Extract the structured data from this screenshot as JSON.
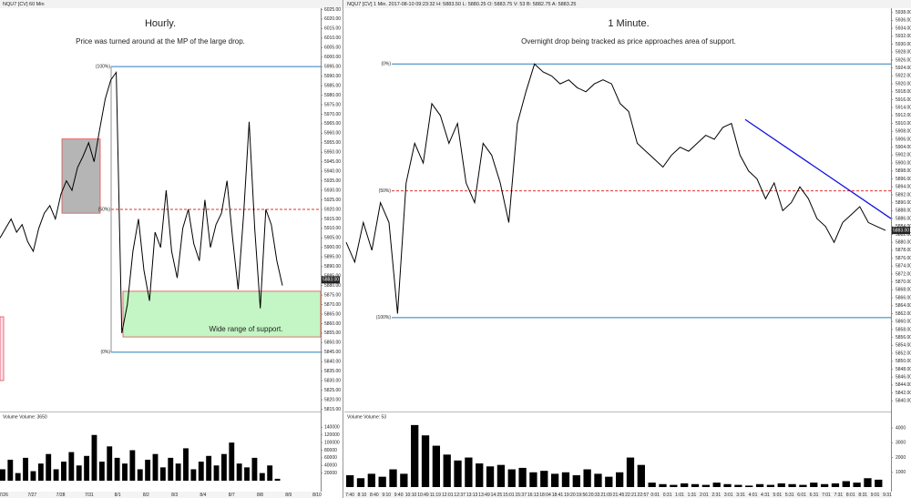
{
  "chart_data": [
    {
      "type": "line",
      "header": "NQU7 [CV] 60 Min",
      "title": "Hourly.",
      "subtitle": "Price was turned around at the MP of the large drop.",
      "annotation": "Wide range of support.",
      "series": [
        {
          "name": "NQU7",
          "color": "#000000",
          "values": [
            5905,
            5910,
            5915,
            5908,
            5912,
            5903,
            5898,
            5910,
            5918,
            5922,
            5915,
            5928,
            5935,
            5930,
            5942,
            5948,
            5955,
            5945,
            5962,
            5978,
            5988,
            5992,
            5855,
            5870,
            5898,
            5915,
            5888,
            5872,
            5908,
            5900,
            5930,
            5898,
            5884,
            5910,
            5920,
            5902,
            5893,
            5925,
            5900,
            5912,
            5918,
            5935,
            5905,
            5878,
            5918,
            5966,
            5910,
            5868,
            5920,
            5912,
            5893,
            5880
          ]
        }
      ],
      "last": {
        "value": 5883,
        "label": "5883.00"
      },
      "levels": [
        {
          "label": "(100%)",
          "value": 5995,
          "color": "#2a7fb8"
        },
        {
          "label": "(50%)",
          "value": 5920,
          "color": "#e03030"
        },
        {
          "label": "(0%)",
          "value": 5845,
          "color": "#2a7fb8"
        }
      ],
      "support_zone": [
        5853,
        5877
      ],
      "highlight_box": [
        5918,
        5957
      ],
      "ylim": [
        5810,
        6030
      ],
      "yticks": [
        {
          "value": 5815,
          "label": "5815.00"
        },
        {
          "value": 5820,
          "label": "5820.00"
        },
        {
          "value": 5825,
          "label": "5825.00"
        },
        {
          "value": 5830,
          "label": "5830.00"
        },
        {
          "value": 5835,
          "label": "5835.00"
        },
        {
          "value": 5840,
          "label": "5840.00"
        },
        {
          "value": 5845,
          "label": "5845.00"
        },
        {
          "value": 5850,
          "label": "5850.00"
        },
        {
          "value": 5855,
          "label": "5855.00"
        },
        {
          "value": 5860,
          "label": "5860.00"
        },
        {
          "value": 5865,
          "label": "5865.00"
        },
        {
          "value": 5870,
          "label": "5870.00"
        },
        {
          "value": 5875,
          "label": "5875.00"
        },
        {
          "value": 5880,
          "label": "5880.00"
        },
        {
          "value": 5885,
          "label": "5885.00"
        },
        {
          "value": 5890,
          "label": "5890.00"
        },
        {
          "value": 5895,
          "label": "5895.00"
        },
        {
          "value": 5900,
          "label": "5900.00"
        },
        {
          "value": 5905,
          "label": "5905.00"
        },
        {
          "value": 5910,
          "label": "5910.00"
        },
        {
          "value": 5915,
          "label": "5915.00"
        },
        {
          "value": 5920,
          "label": "5920.00"
        },
        {
          "value": 5925,
          "label": "5925.00"
        },
        {
          "value": 5930,
          "label": "5930.00"
        },
        {
          "value": 5935,
          "label": "5935.00"
        },
        {
          "value": 5940,
          "label": "5940.00"
        },
        {
          "value": 5945,
          "label": "5945.00"
        },
        {
          "value": 5950,
          "label": "5950.00"
        },
        {
          "value": 5955,
          "label": "5955.00"
        },
        {
          "value": 5960,
          "label": "5960.00"
        },
        {
          "value": 5965,
          "label": "5965.00"
        },
        {
          "value": 5970,
          "label": "5970.00"
        },
        {
          "value": 5975,
          "label": "5975.00"
        },
        {
          "value": 5980,
          "label": "5980.00"
        },
        {
          "value": 5985,
          "label": "5985.00"
        },
        {
          "value": 5990,
          "label": "5990.00"
        },
        {
          "value": 5995,
          "label": "5995.00"
        },
        {
          "value": 6000,
          "label": "6000.00"
        },
        {
          "value": 6005,
          "label": "6005.00"
        },
        {
          "value": 6010,
          "label": "6010.00"
        },
        {
          "value": 6015,
          "label": "6015.00"
        },
        {
          "value": 6020,
          "label": "6020.00"
        },
        {
          "value": 6025,
          "label": "6025.00"
        }
      ],
      "volume": {
        "label": "Volume Volume: 3650",
        "color": "#000000",
        "values": [
          30000,
          55000,
          20000,
          60000,
          25000,
          45000,
          70000,
          30000,
          50000,
          75000,
          40000,
          65000,
          120000,
          50000,
          90000,
          60000,
          45000,
          80000,
          30000,
          55000,
          70000,
          35000,
          60000,
          45000,
          85000,
          30000,
          50000,
          65000,
          40000,
          70000,
          100000,
          45000,
          35000,
          60000,
          20000,
          40000,
          5000
        ],
        "ylim": [
          0,
          160000
        ],
        "yticks": [
          20000,
          40000,
          60000,
          80000,
          100000,
          120000,
          140000
        ]
      },
      "xtick_labels": [
        "7/26",
        "7/27",
        "7/28",
        "7/31",
        "8/1",
        "8/2",
        "8/3",
        "8/4",
        "8/7",
        "8/8",
        "8/9",
        "8/10"
      ]
    },
    {
      "type": "line",
      "header": "NQU7 [CV] 1 Min.  2017-08-10 09:23:32 H: 5883.50 L: 5880.25 O: 5883.75 V: 53 B: 5882.75 A: 5883.25",
      "title": "1 Minute.",
      "subtitle": "Overnight drop being tracked as price approaches area of support.",
      "series": [
        {
          "name": "NQU7",
          "color": "#000000",
          "values": [
            5880,
            5875,
            5885,
            5878,
            5890,
            5885,
            5862,
            5895,
            5905,
            5900,
            5915,
            5912,
            5905,
            5910,
            5895,
            5890,
            5905,
            5902,
            5895,
            5885,
            5910,
            5918,
            5925,
            5923,
            5922,
            5920,
            5921,
            5919,
            5918,
            5920,
            5921,
            5920,
            5915,
            5913,
            5905,
            5903,
            5901,
            5899,
            5902,
            5904,
            5903,
            5905,
            5907,
            5906,
            5909,
            5910,
            5902,
            5898,
            5896,
            5891,
            5895,
            5888,
            5890,
            5894,
            5891,
            5886,
            5884,
            5880,
            5885,
            5887,
            5889,
            5885,
            5884,
            5883
          ]
        }
      ],
      "last": {
        "value": 5883,
        "label": "5883.00"
      },
      "levels": [
        {
          "label": "(0%)",
          "value": 5925,
          "color": "#2a7fb8"
        },
        {
          "label": "(50%)",
          "value": 5893,
          "color": "#e03030"
        },
        {
          "label": "(100%)",
          "value": 5861,
          "color": "#2a7fb8"
        }
      ],
      "trendline": {
        "color": "#1010e0",
        "values": [
          5911,
          5886
        ]
      },
      "ylim": [
        5838,
        5940
      ],
      "yticks": [
        {
          "value": 5840,
          "label": "5840.00"
        },
        {
          "value": 5842,
          "label": "5842.00"
        },
        {
          "value": 5844,
          "label": "5844.00"
        },
        {
          "value": 5846,
          "label": "5846.00"
        },
        {
          "value": 5848,
          "label": "5848.00"
        },
        {
          "value": 5850,
          "label": "5850.00"
        },
        {
          "value": 5852,
          "label": "5852.00"
        },
        {
          "value": 5854,
          "label": "5854.00"
        },
        {
          "value": 5856,
          "label": "5856.00"
        },
        {
          "value": 5858,
          "label": "5858.00"
        },
        {
          "value": 5860,
          "label": "5860.00"
        },
        {
          "value": 5862,
          "label": "5862.00"
        },
        {
          "value": 5864,
          "label": "5864.00"
        },
        {
          "value": 5866,
          "label": "5866.00"
        },
        {
          "value": 5868,
          "label": "5868.00"
        },
        {
          "value": 5870,
          "label": "5870.00"
        },
        {
          "value": 5872,
          "label": "5872.00"
        },
        {
          "value": 5874,
          "label": "5874.00"
        },
        {
          "value": 5876,
          "label": "5876.00"
        },
        {
          "value": 5878,
          "label": "5878.00"
        },
        {
          "value": 5880,
          "label": "5880.00"
        },
        {
          "value": 5882,
          "label": "5882.00"
        },
        {
          "value": 5884,
          "label": "5884.00"
        },
        {
          "value": 5886,
          "label": "5886.00"
        },
        {
          "value": 5888,
          "label": "5888.00"
        },
        {
          "value": 5890,
          "label": "5890.00"
        },
        {
          "value": 5892,
          "label": "5892.00"
        },
        {
          "value": 5894,
          "label": "5894.00"
        },
        {
          "value": 5896,
          "label": "5896.00"
        },
        {
          "value": 5898,
          "label": "5898.00"
        },
        {
          "value": 5900,
          "label": "5900.00"
        },
        {
          "value": 5902,
          "label": "5902.00"
        },
        {
          "value": 5904,
          "label": "5904.00"
        },
        {
          "value": 5906,
          "label": "5906.00"
        },
        {
          "value": 5908,
          "label": "5908.00"
        },
        {
          "value": 5910,
          "label": "5910.00"
        },
        {
          "value": 5912,
          "label": "5912.00"
        },
        {
          "value": 5914,
          "label": "5914.00"
        },
        {
          "value": 5916,
          "label": "5916.00"
        },
        {
          "value": 5918,
          "label": "5918.00"
        },
        {
          "value": 5920,
          "label": "5920.00"
        },
        {
          "value": 5922,
          "label": "5922.00"
        },
        {
          "value": 5924,
          "label": "5924.00"
        },
        {
          "value": 5926,
          "label": "5926.00"
        },
        {
          "value": 5928,
          "label": "5928.00"
        },
        {
          "value": 5930,
          "label": "5930.00"
        },
        {
          "value": 5932,
          "label": "5932.00"
        },
        {
          "value": 5934,
          "label": "5934.00"
        },
        {
          "value": 5936,
          "label": "5936.00"
        },
        {
          "value": 5938,
          "label": "5938.00"
        }
      ],
      "volume": {
        "label": "Volume Volume: 53",
        "color": "#000000",
        "values": [
          800,
          600,
          900,
          700,
          1200,
          900,
          4200,
          3500,
          2800,
          2200,
          1800,
          2000,
          1600,
          1400,
          1500,
          1200,
          1300,
          1000,
          1100,
          900,
          1000,
          800,
          1200,
          900,
          700,
          1000,
          2000,
          1500,
          300,
          200,
          150,
          250,
          200,
          150,
          300,
          200,
          150,
          100,
          200,
          150,
          250,
          200,
          150,
          300,
          200,
          250,
          400,
          300,
          600,
          500
        ],
        "ylim": [
          0,
          4500
        ],
        "yticks": [
          1000,
          2000,
          3000,
          4000
        ]
      },
      "xtick_labels": [
        "7:40",
        "8:10",
        "8:40",
        "9:10",
        "9:40",
        "10:10",
        "10:49",
        "11:19",
        "12:01",
        "12:37",
        "13:13",
        "13:49",
        "14:25",
        "15:01",
        "15:37",
        "16:13",
        "18:04",
        "18:41",
        "19:20",
        "19:56",
        "20:33",
        "21:09",
        "21:45",
        "22:21",
        "22:57",
        "0:01",
        "0:31",
        "1:01",
        "1:31",
        "2:01",
        "2:31",
        "3:01",
        "3:31",
        "4:01",
        "4:31",
        "5:01",
        "5:31",
        "6:01",
        "6:31",
        "7:01",
        "7:31",
        "8:01",
        "8:31",
        "9:01",
        "9:31"
      ]
    }
  ]
}
